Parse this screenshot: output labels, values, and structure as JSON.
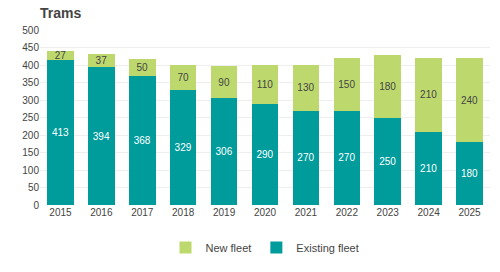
{
  "chart_data": {
    "type": "bar",
    "title": "Trams",
    "categories": [
      "2015",
      "2016",
      "2017",
      "2018",
      "2019",
      "2020",
      "2021",
      "2022",
      "2023",
      "2024",
      "2025"
    ],
    "series": [
      {
        "name": "Existing fleet",
        "color": "#009B9B",
        "values": [
          413,
          394,
          368,
          329,
          306,
          290,
          270,
          270,
          250,
          210,
          180
        ]
      },
      {
        "name": "New fleet",
        "color": "#BDD96E",
        "values": [
          27,
          37,
          50,
          70,
          90,
          110,
          130,
          150,
          180,
          210,
          240
        ]
      }
    ],
    "stacked": true,
    "data_labels": true,
    "ylim": [
      0,
      500
    ],
    "yticks": [
      0,
      50,
      100,
      150,
      200,
      250,
      300,
      350,
      400,
      450,
      500
    ],
    "grid": true,
    "legend": "bottom"
  }
}
